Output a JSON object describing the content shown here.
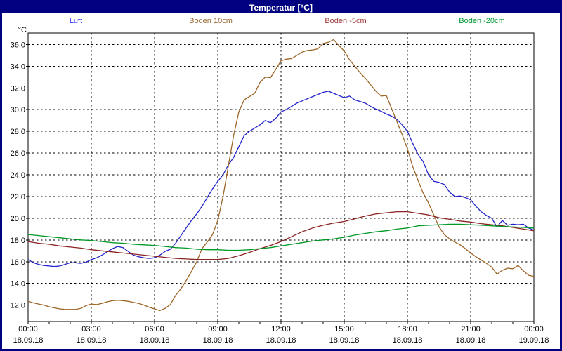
{
  "window": {
    "title": "Temperatur [°C]",
    "title_bg": "#000080",
    "title_color": "#ffffff",
    "border_color": "#000080",
    "background": "#ffffff"
  },
  "chart_data": {
    "type": "line",
    "title": "Temperatur [°C]",
    "grid": {
      "on": true,
      "color": "#000000",
      "dash": "2.5 3.5"
    },
    "legend_position": "top",
    "y_axis": {
      "unit_label": "°C",
      "min": 12.0,
      "max": 36.0,
      "step": 2.0,
      "tick_labels": [
        "36,0",
        "34,0",
        "32,0",
        "30,0",
        "28,0",
        "26,0",
        "24,0",
        "22,0",
        "20,0",
        "18,0",
        "16,0",
        "14,0",
        "12,0"
      ]
    },
    "x_axis": {
      "span_hours": 24,
      "major_step_hours": 3,
      "minor_tick_hours": 1,
      "time_labels": [
        "00:00",
        "03:00",
        "06:00",
        "09:00",
        "12:00",
        "15:00",
        "18:00",
        "21:00",
        "00:00"
      ],
      "date_labels": [
        "18.09.18",
        "18.09.18",
        "18.09.18",
        "18.09.18",
        "18.09.18",
        "18.09.18",
        "18.09.18",
        "18.09.18",
        "19.09.18"
      ]
    },
    "series": [
      {
        "name": "Luft",
        "label_color": "#3333ff",
        "color": "#2222cc",
        "interval_min": 15,
        "values": [
          16.2,
          15.9,
          15.75,
          15.65,
          15.6,
          15.55,
          15.6,
          15.75,
          15.9,
          15.9,
          15.85,
          15.95,
          16.2,
          16.35,
          16.6,
          16.9,
          17.2,
          17.4,
          17.3,
          16.95,
          16.6,
          16.45,
          16.35,
          16.3,
          16.35,
          16.6,
          16.95,
          17.15,
          17.7,
          18.4,
          19.1,
          19.8,
          20.4,
          21.1,
          21.9,
          22.7,
          23.4,
          24.0,
          24.9,
          25.6,
          26.6,
          27.6,
          28.0,
          28.3,
          28.6,
          29.0,
          28.8,
          29.2,
          29.8,
          30.0,
          30.3,
          30.6,
          30.8,
          31.0,
          31.2,
          31.4,
          31.6,
          31.7,
          31.5,
          31.3,
          31.1,
          31.25,
          30.9,
          30.75,
          30.6,
          30.3,
          30.05,
          29.85,
          29.6,
          29.4,
          29.1,
          28.6,
          28.0,
          26.9,
          25.9,
          25.2,
          24.0,
          23.4,
          23.3,
          23.1,
          22.4,
          22.0,
          22.05,
          21.9,
          21.7,
          21.1,
          20.6,
          20.25,
          20.0,
          19.2,
          19.8,
          19.35,
          19.45,
          19.4,
          19.45,
          19.1,
          18.9
        ]
      },
      {
        "name": "Boden 10cm",
        "label_color": "#996633",
        "color": "#9c6527",
        "interval_min": 15,
        "values": [
          12.35,
          12.2,
          12.1,
          12.0,
          11.85,
          11.75,
          11.65,
          11.6,
          11.6,
          11.6,
          11.7,
          11.95,
          12.1,
          12.05,
          12.15,
          12.3,
          12.4,
          12.45,
          12.4,
          12.35,
          12.25,
          12.15,
          12.0,
          11.8,
          11.65,
          11.5,
          11.7,
          12.05,
          12.9,
          13.5,
          14.25,
          15.1,
          16.0,
          17.2,
          17.8,
          18.5,
          19.8,
          22.0,
          24.8,
          27.6,
          29.8,
          30.9,
          31.2,
          31.5,
          32.5,
          33.0,
          32.95,
          33.7,
          34.5,
          34.65,
          34.7,
          35.0,
          35.3,
          35.45,
          35.5,
          35.6,
          36.1,
          36.2,
          36.45,
          35.9,
          35.4,
          34.6,
          34.0,
          33.4,
          32.9,
          32.3,
          31.7,
          31.25,
          31.3,
          30.1,
          28.9,
          27.7,
          26.4,
          24.75,
          23.5,
          22.3,
          21.4,
          20.3,
          19.2,
          18.5,
          18.1,
          17.8,
          17.55,
          17.2,
          16.8,
          16.45,
          16.15,
          15.85,
          15.5,
          14.85,
          15.2,
          15.4,
          15.35,
          15.65,
          15.15,
          14.75,
          14.65
        ]
      },
      {
        "name": "Boden -5cm",
        "label_color": "#993333",
        "color": "#8b2323",
        "interval_min": 30,
        "values": [
          17.85,
          17.7,
          17.6,
          17.45,
          17.35,
          17.25,
          17.1,
          17.0,
          16.9,
          16.8,
          16.7,
          16.6,
          16.5,
          16.4,
          16.3,
          16.25,
          16.2,
          16.2,
          16.2,
          16.3,
          16.55,
          16.85,
          17.2,
          17.5,
          17.85,
          18.3,
          18.75,
          19.1,
          19.35,
          19.55,
          19.7,
          19.95,
          20.2,
          20.4,
          20.5,
          20.6,
          20.6,
          20.45,
          20.3,
          20.05,
          19.9,
          19.75,
          19.65,
          19.5,
          19.4,
          19.3,
          19.15,
          19.0,
          18.85
        ]
      },
      {
        "name": "Boden -20cm",
        "label_color": "#009933",
        "color": "#009926",
        "interval_min": 30,
        "values": [
          18.5,
          18.4,
          18.3,
          18.2,
          18.1,
          18.0,
          17.95,
          17.85,
          17.75,
          17.7,
          17.6,
          17.55,
          17.5,
          17.4,
          17.3,
          17.25,
          17.15,
          17.1,
          17.1,
          17.05,
          17.05,
          17.1,
          17.2,
          17.3,
          17.45,
          17.6,
          17.75,
          17.9,
          18.0,
          18.1,
          18.25,
          18.45,
          18.6,
          18.75,
          18.85,
          19.0,
          19.1,
          19.3,
          19.35,
          19.4,
          19.45,
          19.45,
          19.4,
          19.35,
          19.3,
          19.25,
          19.2,
          19.15,
          19.1
        ]
      }
    ]
  }
}
